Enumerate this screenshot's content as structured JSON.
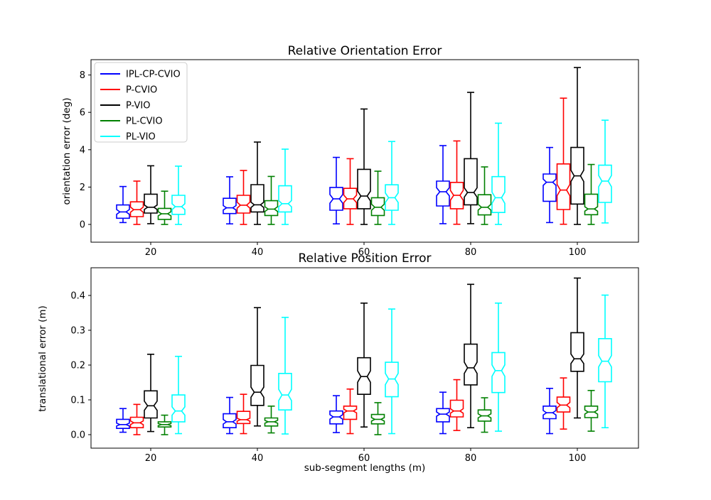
{
  "figure": {
    "background": "#ffffff"
  },
  "legend": {
    "items": [
      {
        "label": "IPL-CP-CVIO",
        "color": "#0000ff"
      },
      {
        "label": "P-CVIO",
        "color": "#ff0000"
      },
      {
        "label": "P-VIO",
        "color": "#000000"
      },
      {
        "label": "PL-CVIO",
        "color": "#008000"
      },
      {
        "label": "PL-VIO",
        "color": "#00ffff"
      }
    ]
  },
  "chart_data": [
    {
      "type": "boxplot",
      "title": "Relative Orientation Error",
      "xlabel": "",
      "ylabel": "orientation error (deg)",
      "categories": [
        20,
        40,
        60,
        80,
        100
      ],
      "xtick_labels": [
        "20",
        "40",
        "60",
        "80",
        "100"
      ],
      "yticks": [
        0,
        2,
        4,
        6,
        8
      ],
      "ytick_labels": [
        "0",
        "2",
        "4",
        "6",
        "8"
      ],
      "ylim": [
        -1.0,
        8.8
      ],
      "grid": false,
      "notched": true,
      "legend_position": "upper-left",
      "stat_order": [
        "whisker_low",
        "q1",
        "median",
        "q3",
        "whisker_high"
      ],
      "series": [
        {
          "name": "IPL-CP-CVIO",
          "color": "#0000ff",
          "values": [
            [
              0.1,
              0.33,
              0.67,
              1.04,
              2.03
            ],
            [
              0.03,
              0.58,
              0.89,
              1.4,
              2.55
            ],
            [
              0.03,
              0.76,
              1.37,
              1.98,
              3.59
            ],
            [
              0.04,
              0.99,
              1.75,
              2.32,
              4.22
            ],
            [
              0.1,
              1.24,
              2.26,
              2.7,
              4.12
            ]
          ]
        },
        {
          "name": "P-CVIO",
          "color": "#ff0000",
          "values": [
            [
              0.0,
              0.42,
              0.79,
              1.21,
              2.32
            ],
            [
              0.0,
              0.61,
              1.03,
              1.56,
              2.89
            ],
            [
              0.0,
              0.84,
              1.37,
              1.93,
              3.52
            ],
            [
              0.01,
              0.84,
              1.56,
              2.25,
              4.47
            ],
            [
              0.01,
              0.8,
              1.84,
              3.24,
              6.76
            ]
          ]
        },
        {
          "name": "P-VIO",
          "color": "#000000",
          "values": [
            [
              0.04,
              0.61,
              0.92,
              1.62,
              3.14
            ],
            [
              0.0,
              0.67,
              1.05,
              2.13,
              4.41
            ],
            [
              0.0,
              0.84,
              1.52,
              2.95,
              6.18
            ],
            [
              0.04,
              1.05,
              1.71,
              3.52,
              7.07
            ],
            [
              0.0,
              1.09,
              2.6,
              4.12,
              8.4
            ]
          ]
        },
        {
          "name": "PL-CVIO",
          "color": "#008000",
          "values": [
            [
              0.0,
              0.27,
              0.57,
              0.86,
              1.78
            ],
            [
              0.0,
              0.48,
              0.82,
              1.27,
              2.57
            ],
            [
              0.0,
              0.48,
              0.92,
              1.43,
              2.85
            ],
            [
              0.0,
              0.51,
              0.92,
              1.59,
              3.08
            ],
            [
              0.0,
              0.52,
              0.83,
              1.62,
              3.21
            ]
          ]
        },
        {
          "name": "PL-VIO",
          "color": "#00ffff",
          "values": [
            [
              0.0,
              0.54,
              0.95,
              1.56,
              3.12
            ],
            [
              0.0,
              0.67,
              1.11,
              2.07,
              4.03
            ],
            [
              0.0,
              0.76,
              1.43,
              2.12,
              4.44
            ],
            [
              0.0,
              0.64,
              1.43,
              2.56,
              5.42
            ],
            [
              0.08,
              1.18,
              2.32,
              3.17,
              5.58
            ]
          ]
        }
      ]
    },
    {
      "type": "boxplot",
      "title": "Relative Position Error",
      "xlabel": "sub-segment lengths (m)",
      "ylabel": "translational error (m)",
      "categories": [
        20,
        40,
        60,
        80,
        100
      ],
      "xtick_labels": [
        "20",
        "40",
        "60",
        "80",
        "100"
      ],
      "yticks": [
        0.0,
        0.1,
        0.2,
        0.3,
        0.4
      ],
      "ytick_labels": [
        "0.0",
        "0.1",
        "0.2",
        "0.3",
        "0.4"
      ],
      "ylim": [
        -0.04,
        0.48
      ],
      "grid": false,
      "notched": true,
      "stat_order": [
        "whisker_low",
        "q1",
        "median",
        "q3",
        "whisker_high"
      ],
      "series": [
        {
          "name": "IPL-CP-CVIO",
          "color": "#0000ff",
          "values": [
            [
              0.007,
              0.018,
              0.029,
              0.044,
              0.075
            ],
            [
              0.003,
              0.02,
              0.037,
              0.06,
              0.107
            ],
            [
              0.006,
              0.031,
              0.051,
              0.068,
              0.112
            ],
            [
              0.003,
              0.037,
              0.059,
              0.075,
              0.122
            ],
            [
              0.003,
              0.046,
              0.063,
              0.082,
              0.133
            ]
          ]
        },
        {
          "name": "P-CVIO",
          "color": "#ff0000",
          "values": [
            [
              0.0,
              0.02,
              0.034,
              0.05,
              0.087
            ],
            [
              0.003,
              0.032,
              0.043,
              0.067,
              0.116
            ],
            [
              0.003,
              0.044,
              0.068,
              0.082,
              0.131
            ],
            [
              0.012,
              0.051,
              0.068,
              0.099,
              0.158
            ],
            [
              0.016,
              0.065,
              0.085,
              0.108,
              0.163
            ]
          ]
        },
        {
          "name": "P-VIO",
          "color": "#000000",
          "values": [
            [
              0.009,
              0.048,
              0.083,
              0.126,
              0.231
            ],
            [
              0.025,
              0.084,
              0.122,
              0.199,
              0.365
            ],
            [
              0.022,
              0.116,
              0.167,
              0.221,
              0.378
            ],
            [
              0.02,
              0.143,
              0.192,
              0.26,
              0.432
            ],
            [
              0.048,
              0.182,
              0.218,
              0.293,
              0.45
            ]
          ]
        },
        {
          "name": "PL-CVIO",
          "color": "#008000",
          "values": [
            [
              0.0,
              0.022,
              0.029,
              0.037,
              0.056
            ],
            [
              0.005,
              0.025,
              0.037,
              0.048,
              0.082
            ],
            [
              0.0,
              0.031,
              0.044,
              0.058,
              0.092
            ],
            [
              0.007,
              0.039,
              0.054,
              0.071,
              0.106
            ],
            [
              0.01,
              0.049,
              0.065,
              0.082,
              0.127
            ]
          ]
        },
        {
          "name": "PL-VIO",
          "color": "#00ffff",
          "values": [
            [
              0.003,
              0.037,
              0.068,
              0.114,
              0.225
            ],
            [
              0.002,
              0.071,
              0.114,
              0.176,
              0.337
            ],
            [
              0.003,
              0.109,
              0.16,
              0.208,
              0.361
            ],
            [
              0.01,
              0.121,
              0.184,
              0.236,
              0.378
            ],
            [
              0.02,
              0.152,
              0.211,
              0.276,
              0.401
            ]
          ]
        }
      ]
    }
  ]
}
